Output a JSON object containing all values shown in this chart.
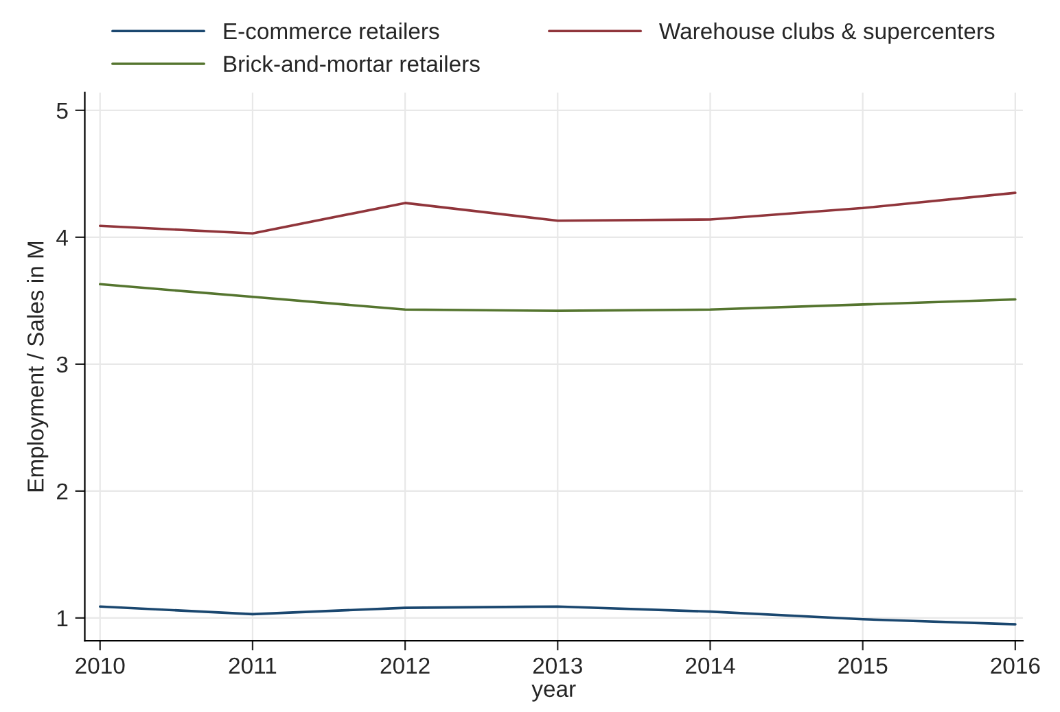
{
  "chart_data": {
    "type": "line",
    "xlabel": "year",
    "ylabel": "Employment / Sales in M",
    "x": [
      2010,
      2011,
      2012,
      2013,
      2014,
      2015,
      2016
    ],
    "series": [
      {
        "name": "E-commerce retailers",
        "color": "#1a476f",
        "values": [
          1.09,
          1.03,
          1.08,
          1.09,
          1.05,
          0.99,
          0.95
        ]
      },
      {
        "name": "Warehouse clubs & supercenters",
        "color": "#90353b",
        "values": [
          4.09,
          4.03,
          4.27,
          4.13,
          4.14,
          4.23,
          4.35
        ]
      },
      {
        "name": "Brick-and-mortar retailers",
        "color": "#55752f",
        "values": [
          3.63,
          3.53,
          3.43,
          3.42,
          3.43,
          3.47,
          3.51
        ]
      }
    ],
    "xlim": [
      2009.9,
      2016.05
    ],
    "ylim": [
      0.82,
      5.14
    ],
    "xticks": [
      2010,
      2011,
      2012,
      2013,
      2014,
      2015,
      2016
    ],
    "yticks": [
      1,
      2,
      3,
      4,
      5
    ],
    "grid": true,
    "legend": "top",
    "marker": "none",
    "line_style": "solid"
  }
}
